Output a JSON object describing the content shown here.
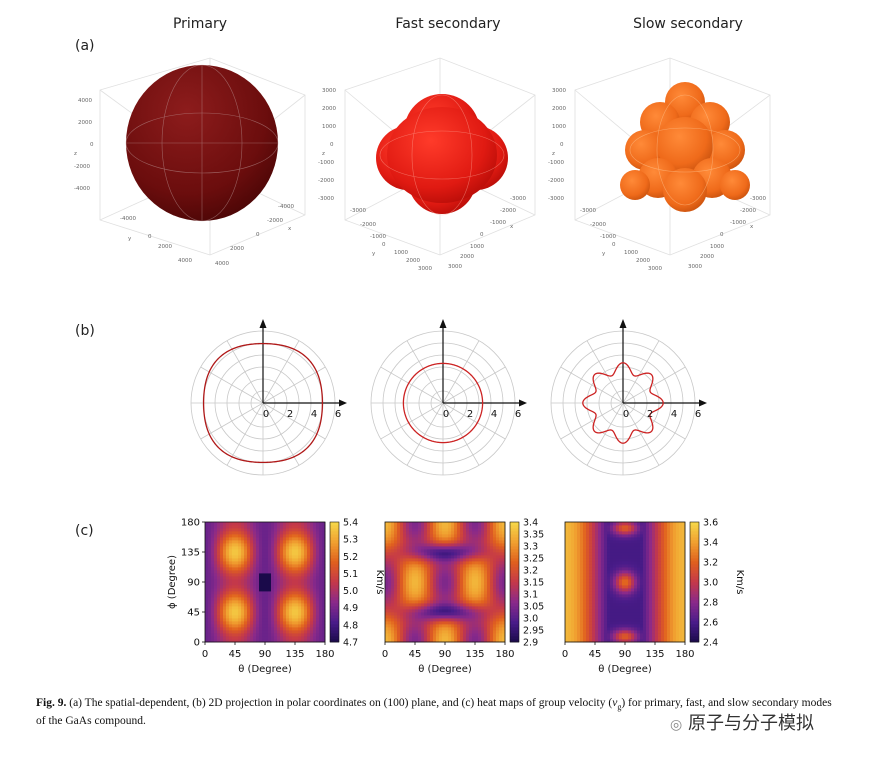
{
  "figure": {
    "panel_labels": [
      "(a)",
      "(b)",
      "(c)"
    ],
    "modes": [
      "Primary",
      "Fast secondary",
      "Slow secondary"
    ],
    "colors": {
      "primary": "#6e0e0e",
      "fast": "#e01a12",
      "slow": "#ef6a1a",
      "polar_line": "#cc2222",
      "grid": "#c8c8c8"
    },
    "axes3d": [
      {
        "z_ticks": [
          "4000",
          "2000",
          "0",
          "-2000",
          "-4000"
        ],
        "y_ticks": [
          "-4000",
          "-2000",
          "0",
          "2000",
          "4000"
        ],
        "x_ticks": [
          "-4000",
          "-2000",
          "0",
          "2000",
          "4000"
        ],
        "x_label": "x",
        "y_label": "y",
        "z_label": "z"
      },
      {
        "z_ticks": [
          "3000",
          "2000",
          "1000",
          "0",
          "-1000",
          "-2000",
          "-3000"
        ],
        "y_ticks": [
          "-3000",
          "-2000",
          "-1000",
          "0",
          "1000",
          "2000",
          "3000"
        ],
        "x_ticks": [
          "-3000",
          "-2000",
          "-1000",
          "0",
          "1000",
          "2000",
          "3000"
        ],
        "x_label": "x",
        "y_label": "y",
        "z_label": "z"
      },
      {
        "z_ticks": [
          "3000",
          "2000",
          "1000",
          "0",
          "-1000",
          "-2000",
          "-3000"
        ],
        "y_ticks": [
          "-3000",
          "-2000",
          "-1000",
          "0",
          "1000",
          "2000",
          "3000"
        ],
        "x_ticks": [
          "-3000",
          "-2000",
          "-1000",
          "0",
          "1000",
          "2000",
          "3000"
        ],
        "x_label": "x",
        "y_label": "y",
        "z_label": "z"
      }
    ],
    "polar_ticks": [
      "0",
      "2",
      "4",
      "6"
    ],
    "caption_bold": "Fig. 9.",
    "caption_text": " (a) The spatial-dependent, (b) 2D projection in polar coordinates on (100) plane, and (c) heat maps of group velocity (",
    "caption_symbol": "ν",
    "caption_sub": "g",
    "caption_text2": ") for primary, fast, and slow secondary modes",
    "caption_line2": "of the GaAs compound.",
    "watermark_text": "原子与分子模拟"
  },
  "chart_data": [
    {
      "type": "line",
      "subtype": "polar",
      "title": "",
      "series": [
        {
          "values": [
            {
              "theta_deg": 0,
              "r": 4.9
            },
            {
              "theta_deg": 45,
              "r": 5.25
            },
            {
              "theta_deg": 90,
              "r": 4.9
            }
          ],
          "note_shape": "four-lobed near-circle"
        }
      ],
      "rlim": [
        0,
        6
      ]
    },
    {
      "type": "line",
      "subtype": "polar",
      "series": [
        {
          "values": [
            {
              "theta_deg": 0,
              "r": 3.3
            },
            {
              "theta_deg": 45,
              "r": 3.3
            },
            {
              "theta_deg": 90,
              "r": 3.3
            }
          ]
        }
      ],
      "rlim": [
        0,
        6
      ]
    },
    {
      "type": "line",
      "subtype": "polar",
      "series": [
        {
          "values": [
            {
              "theta_deg": 0,
              "r": 2.8
            },
            {
              "theta_deg": 22.5,
              "r": 3.4
            },
            {
              "theta_deg": 45,
              "r": 2.6
            },
            {
              "theta_deg": 67.5,
              "r": 3.4
            },
            {
              "theta_deg": 90,
              "r": 2.8
            }
          ]
        }
      ],
      "rlim": [
        0,
        6
      ]
    },
    {
      "type": "heatmap",
      "xlabel": "θ (Degree)",
      "ylabel": "ϕ (Degree)",
      "xticks": [
        "0",
        "45",
        "90",
        "135",
        "180"
      ],
      "yticks": [
        "0",
        "45",
        "90",
        "135",
        "180"
      ],
      "colorbar_label": "Km/s",
      "colorbar_ticks": [
        "5.4",
        "5.3",
        "5.2",
        "5.1",
        "5.0",
        "4.9",
        "4.8",
        "4.7"
      ],
      "zlim": [
        4.7,
        5.4
      ]
    },
    {
      "type": "heatmap",
      "xlabel": "θ (Degree)",
      "xticks": [
        "0",
        "45",
        "90",
        "135",
        "180"
      ],
      "colorbar_label": "",
      "colorbar_ticks": [
        "3.4",
        "3.35",
        "3.3",
        "3.25",
        "3.2",
        "3.15",
        "3.1",
        "3.05",
        "3.0",
        "2.95",
        "2.9"
      ],
      "zlim": [
        2.9,
        3.4
      ]
    },
    {
      "type": "heatmap",
      "xlabel": "θ (Degree)",
      "xticks": [
        "0",
        "45",
        "90",
        "135",
        "180"
      ],
      "colorbar_label": "Km/s",
      "colorbar_ticks": [
        "3.6",
        "3.4",
        "3.2",
        "3.0",
        "2.8",
        "2.6",
        "2.4"
      ],
      "zlim": [
        2.4,
        3.6
      ]
    }
  ]
}
